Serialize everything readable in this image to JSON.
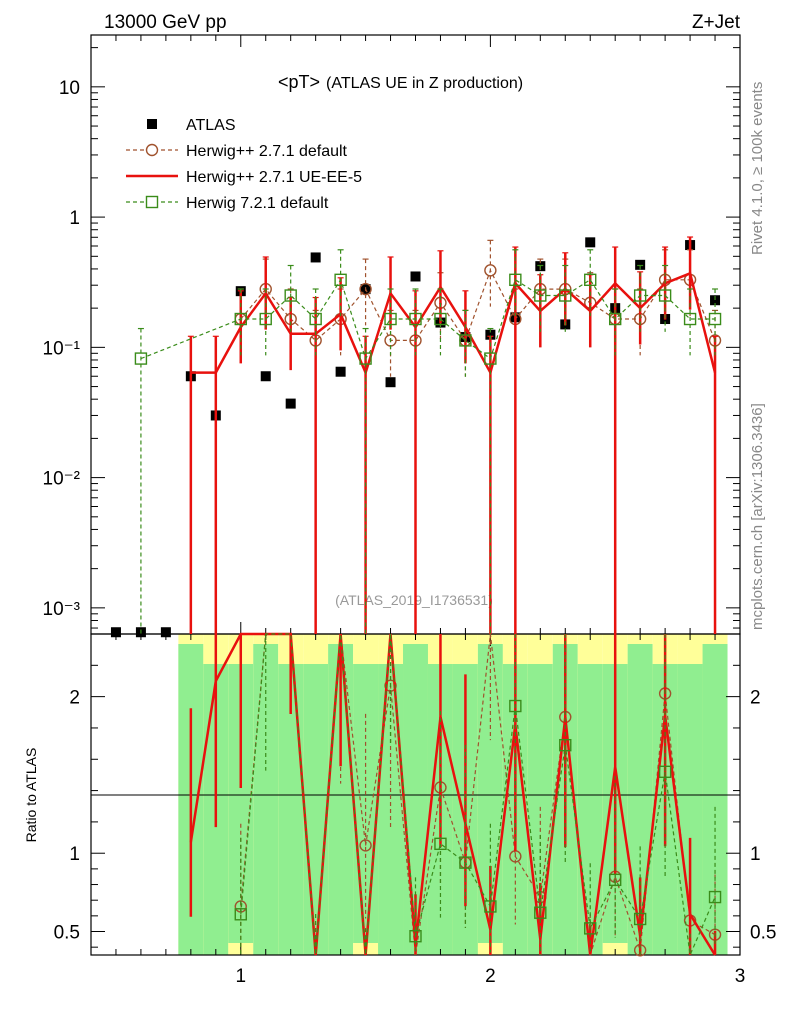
{
  "header": {
    "left": "13000 GeV pp",
    "right": "Z+Jet",
    "side_top": "Rivet 4.1.0, ≥ 100k events",
    "side_bottom": "mcplots.cern.ch [arXiv:1306.3436]"
  },
  "colors": {
    "data": "#000000",
    "herwigpp_default": "#a0522d",
    "herwigpp_ueee5": "#e8110e",
    "herwig7_default": "#3a8c1a",
    "band_inner": "#90ee90",
    "band_outer": "#ffff99"
  },
  "chart_data": {
    "type": "line",
    "title": "<pT>",
    "subtitle": "(ATLAS UE in Z production)",
    "analysis": "(ATLAS_2019_I1736531)",
    "xlim": [
      0.4,
      3.0
    ],
    "ylim_main": [
      0.00063,
      25
    ],
    "ylim_ratio": [
      0.35,
      2.4
    ],
    "yscale_main": "log",
    "y_ticks_main": [
      {
        "value": 10,
        "label": "10"
      },
      {
        "value": 1,
        "label": "1"
      },
      {
        "value": 0.1,
        "label": "10⁻¹"
      },
      {
        "value": 0.01,
        "label": "10⁻²"
      },
      {
        "value": 0.001,
        "label": "10⁻³"
      }
    ],
    "y_ticks_ratio": [
      {
        "value": 2,
        "label": "2"
      },
      {
        "value": 1,
        "label": "1"
      },
      {
        "value": 0.5,
        "label": "0.5"
      }
    ],
    "x_ticks": [
      {
        "value": 1,
        "label": "1"
      },
      {
        "value": 2,
        "label": "2"
      },
      {
        "value": 3,
        "label": "3"
      }
    ],
    "ylabel_ratio": "Ratio to ATLAS",
    "x": [
      0.5,
      0.6,
      0.7,
      0.8,
      0.9,
      1.0,
      1.1,
      1.2,
      1.3,
      1.4,
      1.5,
      1.6,
      1.7,
      1.8,
      1.9,
      2.0,
      2.1,
      2.2,
      2.3,
      2.4,
      2.5,
      2.6,
      2.7,
      2.8,
      2.9
    ],
    "series": [
      {
        "name": "ATLAS",
        "style": "markers",
        "values": [
          0.00065,
          0.00065,
          0.00065,
          0.06,
          0.03,
          0.27,
          0.06,
          0.037,
          0.49,
          0.065,
          0.28,
          0.054,
          0.35,
          0.155,
          0.12,
          0.125,
          0.17,
          0.42,
          0.15,
          0.64,
          0.2,
          0.43,
          0.165,
          0.61,
          0.23
        ]
      },
      {
        "name": "Herwig++ 2.7.1 default",
        "style": "dashed-circle",
        "values": [
          null,
          null,
          null,
          null,
          null,
          0.165,
          0.28,
          0.165,
          0.113,
          0.165,
          0.28,
          0.113,
          0.113,
          0.22,
          0.113,
          0.39,
          0.165,
          0.28,
          0.28,
          0.22,
          0.165,
          0.165,
          0.33,
          0.33,
          0.113
        ],
        "ratio": [
          null,
          null,
          null,
          null,
          null,
          0.66,
          4.5,
          4.5,
          0.22,
          2.6,
          1.05,
          2.07,
          0.32,
          1.42,
          0.94,
          3.1,
          0.98,
          0.72,
          1.87,
          0.34,
          0.85,
          0.38,
          2.02,
          0.57,
          0.48
        ]
      },
      {
        "name": "Herwig++ 2.7.1 UE-EE-5",
        "style": "solid",
        "values": [
          null,
          null,
          null,
          0.064,
          0.064,
          0.143,
          0.26,
          0.127,
          0.127,
          0.18,
          0.064,
          0.26,
          0.143,
          0.29,
          0.143,
          0.064,
          0.31,
          0.19,
          0.28,
          0.19,
          0.31,
          0.2,
          0.31,
          0.37,
          0.064
        ],
        "ratio": [
          null,
          null,
          null,
          1.07,
          2.1,
          2.55,
          4.3,
          3.4,
          0.26,
          2.8,
          0.23,
          4.8,
          0.41,
          1.87,
          1.19,
          0.51,
          1.82,
          0.45,
          1.87,
          0.3,
          1.55,
          0.47,
          1.88,
          0.61,
          0.28
        ]
      },
      {
        "name": "Herwig 7.2.1 default",
        "style": "dashed-square",
        "values": [
          null,
          0.082,
          null,
          null,
          null,
          0.165,
          0.165,
          0.25,
          0.165,
          0.33,
          0.082,
          0.165,
          0.165,
          0.165,
          0.113,
          0.082,
          0.33,
          0.25,
          0.25,
          0.33,
          0.165,
          0.25,
          0.25,
          0.165,
          0.165
        ],
        "ratio": [
          null,
          null,
          null,
          null,
          null,
          0.61,
          2.75,
          6.7,
          0.34,
          5.1,
          0.29,
          3.05,
          0.47,
          1.06,
          0.94,
          0.66,
          1.94,
          0.62,
          1.69,
          0.52,
          0.83,
          0.58,
          1.52,
          0.27,
          0.72
        ]
      }
    ]
  }
}
